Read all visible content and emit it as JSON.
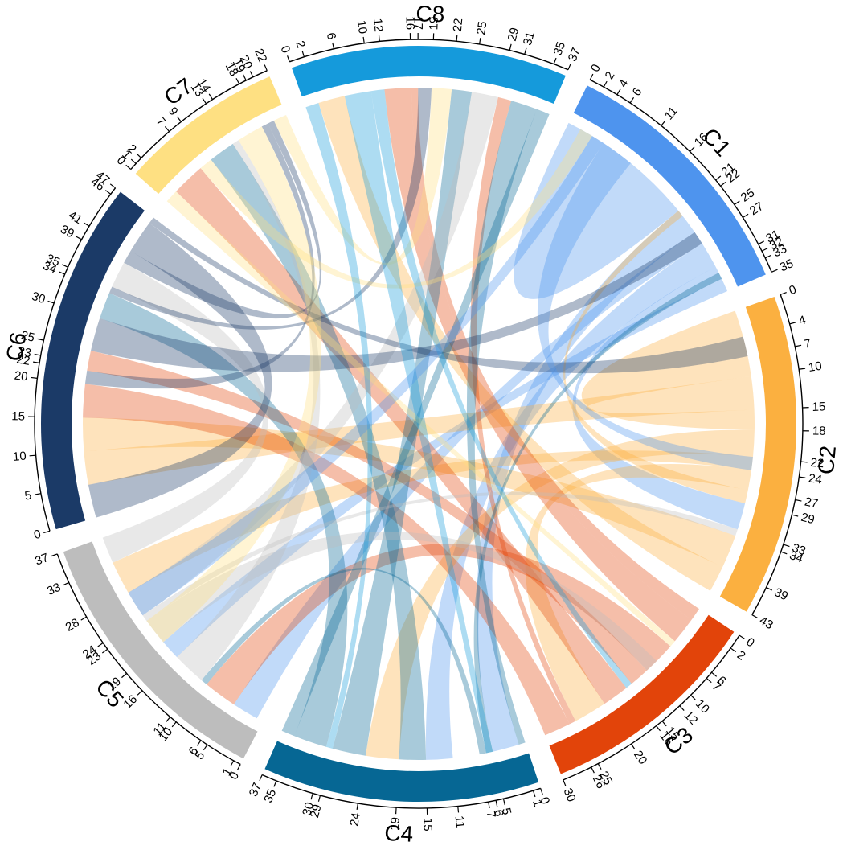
{
  "chart_data": {
    "type": "chord",
    "title": "",
    "sectors": [
      {
        "name": "C1",
        "total": 35,
        "color": "#4E94EE",
        "ticks": [
          0,
          2,
          4,
          6,
          11,
          16,
          21,
          22,
          25,
          27,
          31,
          32,
          33,
          35
        ]
      },
      {
        "name": "C2",
        "total": 43,
        "color": "#FBB040",
        "ticks": [
          0,
          4,
          7,
          10,
          15,
          18,
          22,
          24,
          27,
          29,
          33,
          34,
          39,
          43
        ]
      },
      {
        "name": "C3",
        "total": 30,
        "color": "#E2440A",
        "ticks": [
          0,
          2,
          6,
          7,
          10,
          12,
          15,
          16,
          20,
          25,
          26,
          30
        ]
      },
      {
        "name": "C4",
        "total": 37,
        "color": "#066794",
        "ticks": [
          0,
          1,
          5,
          6,
          7,
          11,
          15,
          19,
          24,
          29,
          30,
          35,
          37
        ]
      },
      {
        "name": "C5",
        "total": 37,
        "color": "#BDBDBD",
        "ticks": [
          0,
          1,
          5,
          6,
          10,
          11,
          16,
          19,
          23,
          24,
          28,
          33,
          37
        ]
      },
      {
        "name": "C6",
        "total": 47,
        "color": "#1B3A67",
        "ticks": [
          0,
          5,
          10,
          15,
          20,
          22,
          23,
          25,
          30,
          34,
          35,
          39,
          41,
          46,
          47
        ]
      },
      {
        "name": "C7",
        "total": 22,
        "color": "#FEE082",
        "ticks": [
          0,
          1,
          2,
          7,
          9,
          13,
          14,
          18,
          19,
          20,
          22
        ]
      },
      {
        "name": "C8",
        "total": 37,
        "color": "#159ADB",
        "ticks": [
          0,
          2,
          6,
          10,
          12,
          16,
          17,
          19,
          22,
          25,
          29,
          31,
          35,
          37
        ]
      }
    ],
    "links": [
      {
        "from": "C1",
        "from_range": [
          0,
          11
        ],
        "to": "C1",
        "to_range": [
          11,
          21
        ]
      },
      {
        "from": "C1",
        "from_range": [
          21,
          25
        ],
        "to": "C4",
        "to_range": [
          1,
          5
        ]
      },
      {
        "from": "C1",
        "from_range": [
          25,
          27
        ],
        "to": "C5",
        "to_range": [
          1,
          5
        ]
      },
      {
        "from": "C1",
        "from_range": [
          27,
          31
        ],
        "to": "C4",
        "to_range": [
          11,
          15
        ]
      },
      {
        "from": "C1",
        "from_range": [
          31,
          33
        ],
        "to": "C2",
        "to_range": [
          29,
          33
        ]
      },
      {
        "from": "C1",
        "from_range": [
          33,
          35
        ],
        "to": "C5",
        "to_range": [
          16,
          19
        ]
      },
      {
        "from": "C2",
        "from_range": [
          0,
          10
        ],
        "to": "C2",
        "to_range": [
          15,
          18
        ]
      },
      {
        "from": "C2",
        "from_range": [
          10,
          15
        ],
        "to": "C6",
        "to_range": [
          5,
          10
        ]
      },
      {
        "from": "C2",
        "from_range": [
          18,
          22
        ],
        "to": "C4",
        "to_range": [
          19,
          24
        ]
      },
      {
        "from": "C2",
        "from_range": [
          22,
          24
        ],
        "to": "C5",
        "to_range": [
          28,
          33
        ]
      },
      {
        "from": "C2",
        "from_range": [
          24,
          27
        ],
        "to": "C3",
        "to_range": [
          20,
          25
        ]
      },
      {
        "from": "C2",
        "from_range": [
          27,
          29
        ],
        "to": "C1",
        "to_range": [
          21,
          22
        ]
      },
      {
        "from": "C2",
        "from_range": [
          34,
          39
        ],
        "to": "C6",
        "to_range": [
          10,
          15
        ]
      },
      {
        "from": "C2",
        "from_range": [
          39,
          43
        ],
        "to": "C8",
        "to_range": [
          2,
          6
        ]
      },
      {
        "from": "C3",
        "from_range": [
          0,
          2
        ],
        "to": "C8",
        "to_range": [
          16,
          17
        ]
      },
      {
        "from": "C3",
        "from_range": [
          2,
          6
        ],
        "to": "C8",
        "to_range": [
          12,
          16
        ]
      },
      {
        "from": "C3",
        "from_range": [
          7,
          12
        ],
        "to": "C5",
        "to_range": [
          5,
          10
        ]
      },
      {
        "from": "C3",
        "from_range": [
          12,
          15
        ],
        "to": "C6",
        "to_range": [
          22,
          25
        ]
      },
      {
        "from": "C3",
        "from_range": [
          16,
          20
        ],
        "to": "C7",
        "to_range": [
          2,
          7
        ]
      },
      {
        "from": "C3",
        "from_range": [
          25,
          26
        ],
        "to": "C8",
        "to_range": [
          29,
          31
        ]
      },
      {
        "from": "C3",
        "from_range": [
          26,
          30
        ],
        "to": "C6",
        "to_range": [
          15,
          20
        ]
      },
      {
        "from": "C4",
        "from_range": [
          0,
          1
        ],
        "to": "C8",
        "to_range": [
          31,
          35
        ]
      },
      {
        "from": "C4",
        "from_range": [
          5,
          6
        ],
        "to": "C1",
        "to_range": [
          32,
          33
        ]
      },
      {
        "from": "C4",
        "from_range": [
          6,
          7
        ],
        "to": "C5",
        "to_range": [
          10,
          11
        ]
      },
      {
        "from": "C4",
        "from_range": [
          15,
          19
        ],
        "to": "C7",
        "to_range": [
          9,
          13
        ]
      },
      {
        "from": "C4",
        "from_range": [
          24,
          29
        ],
        "to": "C8",
        "to_range": [
          22,
          25
        ]
      },
      {
        "from": "C4",
        "from_range": [
          30,
          35
        ],
        "to": "C6",
        "to_range": [
          30,
          34
        ]
      },
      {
        "from": "C4",
        "from_range": [
          35,
          37
        ],
        "to": "C8",
        "to_range": [
          35,
          37
        ]
      },
      {
        "from": "C5",
        "from_range": [
          11,
          16
        ],
        "to": "C7",
        "to_range": [
          13,
          14
        ]
      },
      {
        "from": "C5",
        "from_range": [
          19,
          23
        ],
        "to": "C3",
        "to_range": [
          10,
          12
        ]
      },
      {
        "from": "C5",
        "from_range": [
          23,
          24
        ],
        "to": "C2",
        "to_range": [
          33,
          34
        ]
      },
      {
        "from": "C5",
        "from_range": [
          24,
          28
        ],
        "to": "C8",
        "to_range": [
          25,
          29
        ]
      },
      {
        "from": "C5",
        "from_range": [
          33,
          37
        ],
        "to": "C6",
        "to_range": [
          35,
          39
        ]
      },
      {
        "from": "C6",
        "from_range": [
          0,
          5
        ],
        "to": "C6",
        "to_range": [
          41,
          46
        ]
      },
      {
        "from": "C6",
        "from_range": [
          20,
          22
        ],
        "to": "C7",
        "to_range": [
          18,
          19
        ]
      },
      {
        "from": "C6",
        "from_range": [
          25,
          30
        ],
        "to": "C1",
        "to_range": [
          25,
          27
        ]
      },
      {
        "from": "C6",
        "from_range": [
          34,
          35
        ],
        "to": "C8",
        "to_range": [
          17,
          19
        ]
      },
      {
        "from": "C6",
        "from_range": [
          39,
          41
        ],
        "to": "C7",
        "to_range": [
          19,
          20
        ]
      },
      {
        "from": "C6",
        "from_range": [
          46,
          47
        ],
        "to": "C2",
        "to_range": [
          4,
          7
        ]
      },
      {
        "from": "C7",
        "from_range": [
          0,
          2
        ],
        "to": "C3",
        "to_range": [
          6,
          7
        ]
      },
      {
        "from": "C7",
        "from_range": [
          7,
          9
        ],
        "to": "C1",
        "to_range": [
          2,
          4
        ]
      },
      {
        "from": "C7",
        "from_range": [
          14,
          18
        ],
        "to": "C5",
        "to_range": [
          19,
          23
        ]
      },
      {
        "from": "C7",
        "from_range": [
          20,
          22
        ],
        "to": "C8",
        "to_range": [
          19,
          22
        ]
      },
      {
        "from": "C8",
        "from_range": [
          0,
          2
        ],
        "to": "C4",
        "to_range": [
          29,
          30
        ]
      },
      {
        "from": "C8",
        "from_range": [
          6,
          10
        ],
        "to": "C4",
        "to_range": [
          5,
          6
        ]
      },
      {
        "from": "C8",
        "from_range": [
          10,
          12
        ],
        "to": "C3",
        "to_range": [
          15,
          16
        ]
      },
      {
        "from": "C1",
        "from_range": [
          4,
          6
        ],
        "to": "C5",
        "to_range": [
          24,
          28
        ]
      },
      {
        "from": "C1",
        "from_range": [
          6,
          11
        ],
        "to": "C2",
        "to_range": [
          22,
          24
        ]
      }
    ],
    "link_opacity": 0.35,
    "grid": false
  }
}
